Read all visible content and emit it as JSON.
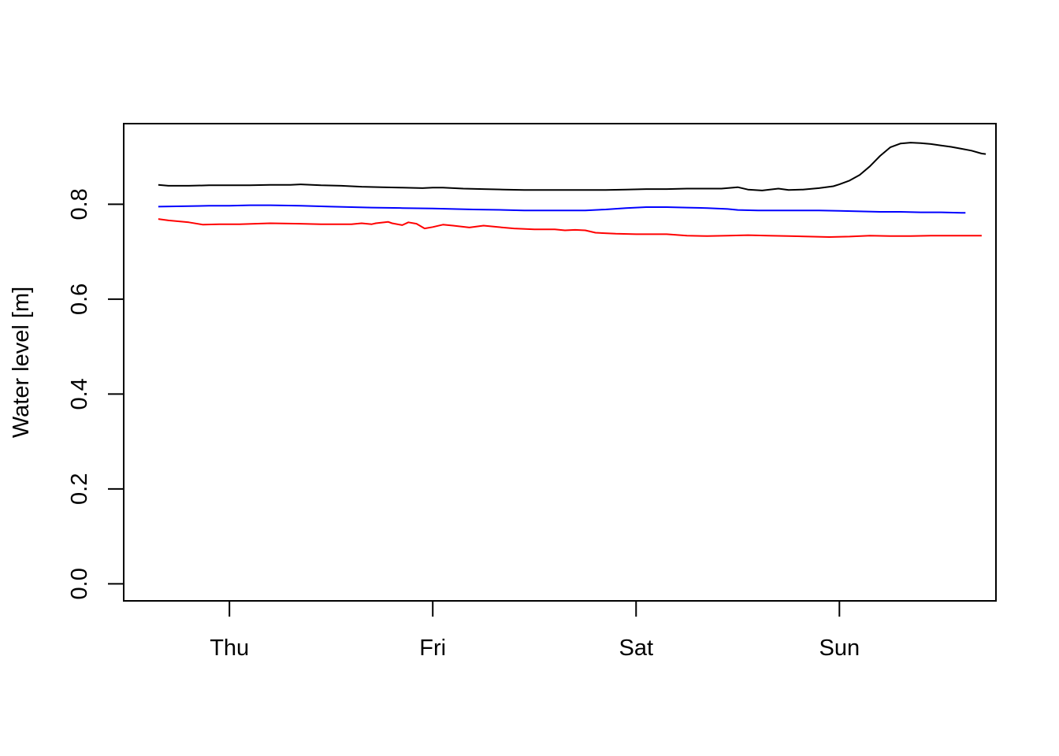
{
  "chart_data": {
    "type": "line",
    "title": "",
    "xlabel": "",
    "ylabel": "Water level [m]",
    "x_unit": "days since Thursday 00:00",
    "xlim": [
      -0.52,
      3.77
    ],
    "ylim": [
      -0.036,
      0.97
    ],
    "x_ticks": [
      {
        "value": 0,
        "label": "Thu"
      },
      {
        "value": 1,
        "label": "Fri"
      },
      {
        "value": 2,
        "label": "Sat"
      },
      {
        "value": 3,
        "label": "Sun"
      }
    ],
    "y_ticks": [
      {
        "value": 0.0,
        "label": "0.0"
      },
      {
        "value": 0.2,
        "label": "0.2"
      },
      {
        "value": 0.4,
        "label": "0.4"
      },
      {
        "value": 0.6,
        "label": "0.6"
      },
      {
        "value": 0.8,
        "label": "0.8"
      }
    ],
    "grid": false,
    "series": [
      {
        "color": "#000000",
        "points": [
          [
            -0.35,
            0.841
          ],
          [
            -0.3,
            0.839
          ],
          [
            -0.2,
            0.839
          ],
          [
            -0.1,
            0.84
          ],
          [
            0,
            0.84
          ],
          [
            0.1,
            0.84
          ],
          [
            0.2,
            0.841
          ],
          [
            0.3,
            0.841
          ],
          [
            0.35,
            0.842
          ],
          [
            0.45,
            0.84
          ],
          [
            0.55,
            0.839
          ],
          [
            0.65,
            0.837
          ],
          [
            0.75,
            0.836
          ],
          [
            0.85,
            0.835
          ],
          [
            0.95,
            0.834
          ],
          [
            1.0,
            0.835
          ],
          [
            1.05,
            0.835
          ],
          [
            1.15,
            0.833
          ],
          [
            1.25,
            0.832
          ],
          [
            1.35,
            0.831
          ],
          [
            1.45,
            0.83
          ],
          [
            1.55,
            0.83
          ],
          [
            1.65,
            0.83
          ],
          [
            1.75,
            0.83
          ],
          [
            1.85,
            0.83
          ],
          [
            1.95,
            0.831
          ],
          [
            2.05,
            0.832
          ],
          [
            2.15,
            0.832
          ],
          [
            2.25,
            0.833
          ],
          [
            2.35,
            0.833
          ],
          [
            2.42,
            0.833
          ],
          [
            2.5,
            0.836
          ],
          [
            2.55,
            0.831
          ],
          [
            2.62,
            0.829
          ],
          [
            2.7,
            0.833
          ],
          [
            2.75,
            0.83
          ],
          [
            2.82,
            0.831
          ],
          [
            2.9,
            0.834
          ],
          [
            2.97,
            0.838
          ],
          [
            3.0,
            0.842
          ],
          [
            3.05,
            0.85
          ],
          [
            3.1,
            0.862
          ],
          [
            3.15,
            0.88
          ],
          [
            3.2,
            0.902
          ],
          [
            3.25,
            0.92
          ],
          [
            3.3,
            0.928
          ],
          [
            3.35,
            0.93
          ],
          [
            3.4,
            0.929
          ],
          [
            3.45,
            0.927
          ],
          [
            3.5,
            0.924
          ],
          [
            3.55,
            0.921
          ],
          [
            3.6,
            0.917
          ],
          [
            3.65,
            0.913
          ],
          [
            3.7,
            0.907
          ],
          [
            3.72,
            0.906
          ]
        ]
      },
      {
        "color": "#0000ff",
        "points": [
          [
            -0.35,
            0.795
          ],
          [
            -0.2,
            0.796
          ],
          [
            -0.1,
            0.797
          ],
          [
            0,
            0.797
          ],
          [
            0.1,
            0.798
          ],
          [
            0.2,
            0.798
          ],
          [
            0.35,
            0.797
          ],
          [
            0.5,
            0.795
          ],
          [
            0.6,
            0.794
          ],
          [
            0.7,
            0.793
          ],
          [
            0.85,
            0.792
          ],
          [
            1.0,
            0.791
          ],
          [
            1.1,
            0.79
          ],
          [
            1.2,
            0.789
          ],
          [
            1.35,
            0.788
          ],
          [
            1.45,
            0.787
          ],
          [
            1.6,
            0.787
          ],
          [
            1.75,
            0.787
          ],
          [
            1.85,
            0.789
          ],
          [
            1.95,
            0.792
          ],
          [
            2.05,
            0.794
          ],
          [
            2.15,
            0.794
          ],
          [
            2.25,
            0.793
          ],
          [
            2.35,
            0.792
          ],
          [
            2.45,
            0.79
          ],
          [
            2.5,
            0.788
          ],
          [
            2.6,
            0.787
          ],
          [
            2.7,
            0.787
          ],
          [
            2.8,
            0.787
          ],
          [
            2.9,
            0.787
          ],
          [
            3.0,
            0.786
          ],
          [
            3.1,
            0.785
          ],
          [
            3.2,
            0.784
          ],
          [
            3.3,
            0.784
          ],
          [
            3.4,
            0.783
          ],
          [
            3.5,
            0.783
          ],
          [
            3.6,
            0.782
          ],
          [
            3.62,
            0.782
          ]
        ]
      },
      {
        "color": "#ff0000",
        "points": [
          [
            -0.35,
            0.769
          ],
          [
            -0.3,
            0.766
          ],
          [
            -0.2,
            0.762
          ],
          [
            -0.13,
            0.757
          ],
          [
            -0.05,
            0.758
          ],
          [
            0.05,
            0.758
          ],
          [
            0.2,
            0.76
          ],
          [
            0.35,
            0.759
          ],
          [
            0.45,
            0.758
          ],
          [
            0.6,
            0.758
          ],
          [
            0.65,
            0.76
          ],
          [
            0.7,
            0.758
          ],
          [
            0.72,
            0.76
          ],
          [
            0.78,
            0.763
          ],
          [
            0.8,
            0.76
          ],
          [
            0.85,
            0.756
          ],
          [
            0.88,
            0.762
          ],
          [
            0.92,
            0.759
          ],
          [
            0.96,
            0.749
          ],
          [
            1.0,
            0.752
          ],
          [
            1.05,
            0.757
          ],
          [
            1.1,
            0.755
          ],
          [
            1.18,
            0.751
          ],
          [
            1.25,
            0.755
          ],
          [
            1.32,
            0.752
          ],
          [
            1.4,
            0.749
          ],
          [
            1.5,
            0.747
          ],
          [
            1.6,
            0.747
          ],
          [
            1.65,
            0.745
          ],
          [
            1.7,
            0.746
          ],
          [
            1.75,
            0.745
          ],
          [
            1.8,
            0.74
          ],
          [
            1.9,
            0.738
          ],
          [
            2.0,
            0.737
          ],
          [
            2.1,
            0.737
          ],
          [
            2.15,
            0.737
          ],
          [
            2.25,
            0.734
          ],
          [
            2.35,
            0.733
          ],
          [
            2.45,
            0.734
          ],
          [
            2.55,
            0.735
          ],
          [
            2.65,
            0.734
          ],
          [
            2.75,
            0.733
          ],
          [
            2.85,
            0.732
          ],
          [
            2.95,
            0.731
          ],
          [
            3.05,
            0.732
          ],
          [
            3.15,
            0.734
          ],
          [
            3.25,
            0.733
          ],
          [
            3.35,
            0.733
          ],
          [
            3.45,
            0.734
          ],
          [
            3.6,
            0.734
          ],
          [
            3.7,
            0.734
          ]
        ]
      }
    ]
  }
}
